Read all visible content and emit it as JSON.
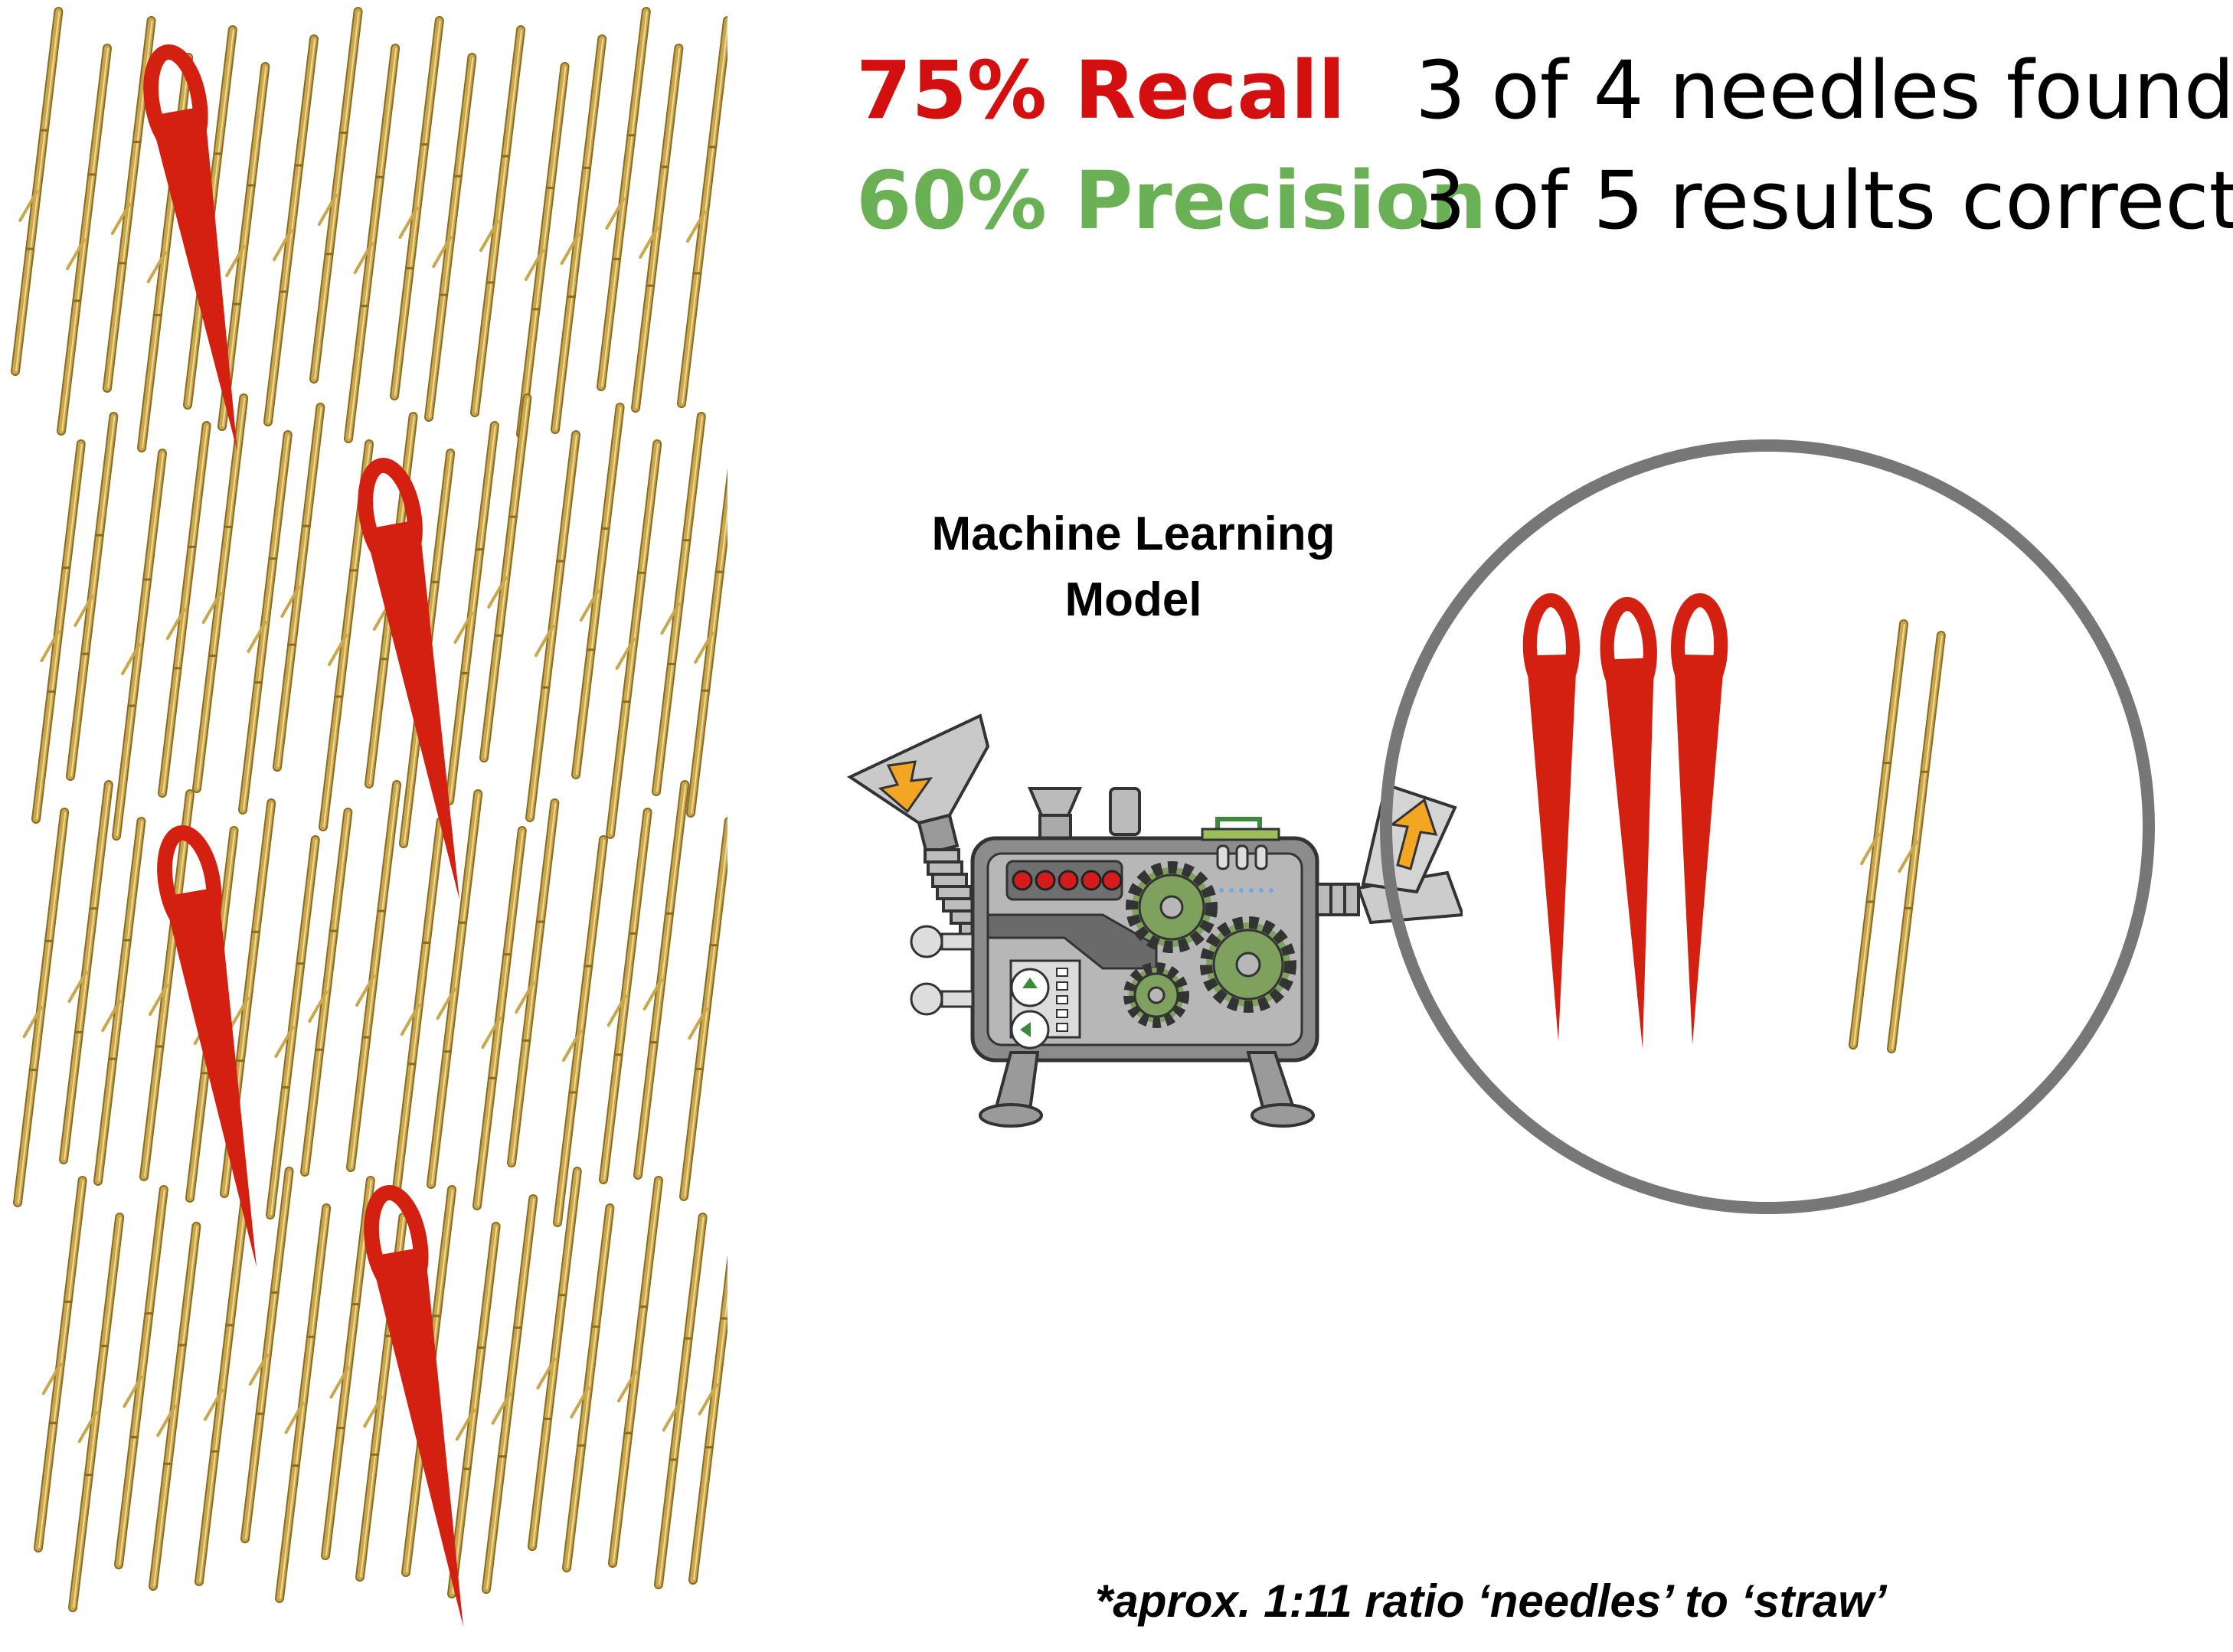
{
  "metrics": {
    "recall": {
      "label": "75% Recall",
      "description": "3 of 4 needles found",
      "color": "#d40f0f"
    },
    "precision": {
      "label": "60% Precision",
      "description": "3 of 5 results correct",
      "color": "#6ab055"
    }
  },
  "model": {
    "title_line1": "Machine Learning",
    "title_line2": "Model"
  },
  "footnote": "*aprox. 1:11 ratio ‘needles’ to ‘straw’",
  "haystack": {
    "needles_total": 4,
    "straw_color": "#c9a74a"
  },
  "results": {
    "needles_found": 3,
    "results_total": 5,
    "straw_in_results": 2,
    "circle_color": "#777777",
    "needle_color": "#d42011"
  }
}
